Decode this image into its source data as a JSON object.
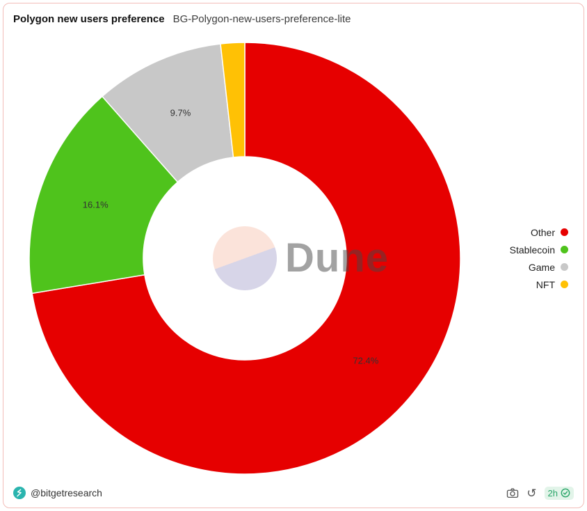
{
  "header": {
    "title": "Polygon new users preference",
    "subtitle": "BG-Polygon-new-users-preference-lite"
  },
  "chart_data": {
    "type": "pie",
    "donut": true,
    "title": "Polygon new users preference",
    "start_angle_deg": 0,
    "direction": "clockwise",
    "categories": [
      "Other",
      "Stablecoin",
      "Game",
      "NFT"
    ],
    "values": [
      72.4,
      16.1,
      9.7,
      1.8
    ],
    "labels": [
      "72.4%",
      "16.1%",
      "9.7%",
      ""
    ],
    "colors": [
      "#e60000",
      "#4fc31c",
      "#c8c8c8",
      "#ffc105"
    ],
    "legend_position": "right"
  },
  "watermark": {
    "text": "Dune"
  },
  "footer": {
    "handle": "@bitgetresearch",
    "age_badge": "2h",
    "badge_bg": "#e2f4e9",
    "badge_text_color": "#27a567",
    "logo_color": "#2ab4ae",
    "icon_color": "#555555"
  }
}
